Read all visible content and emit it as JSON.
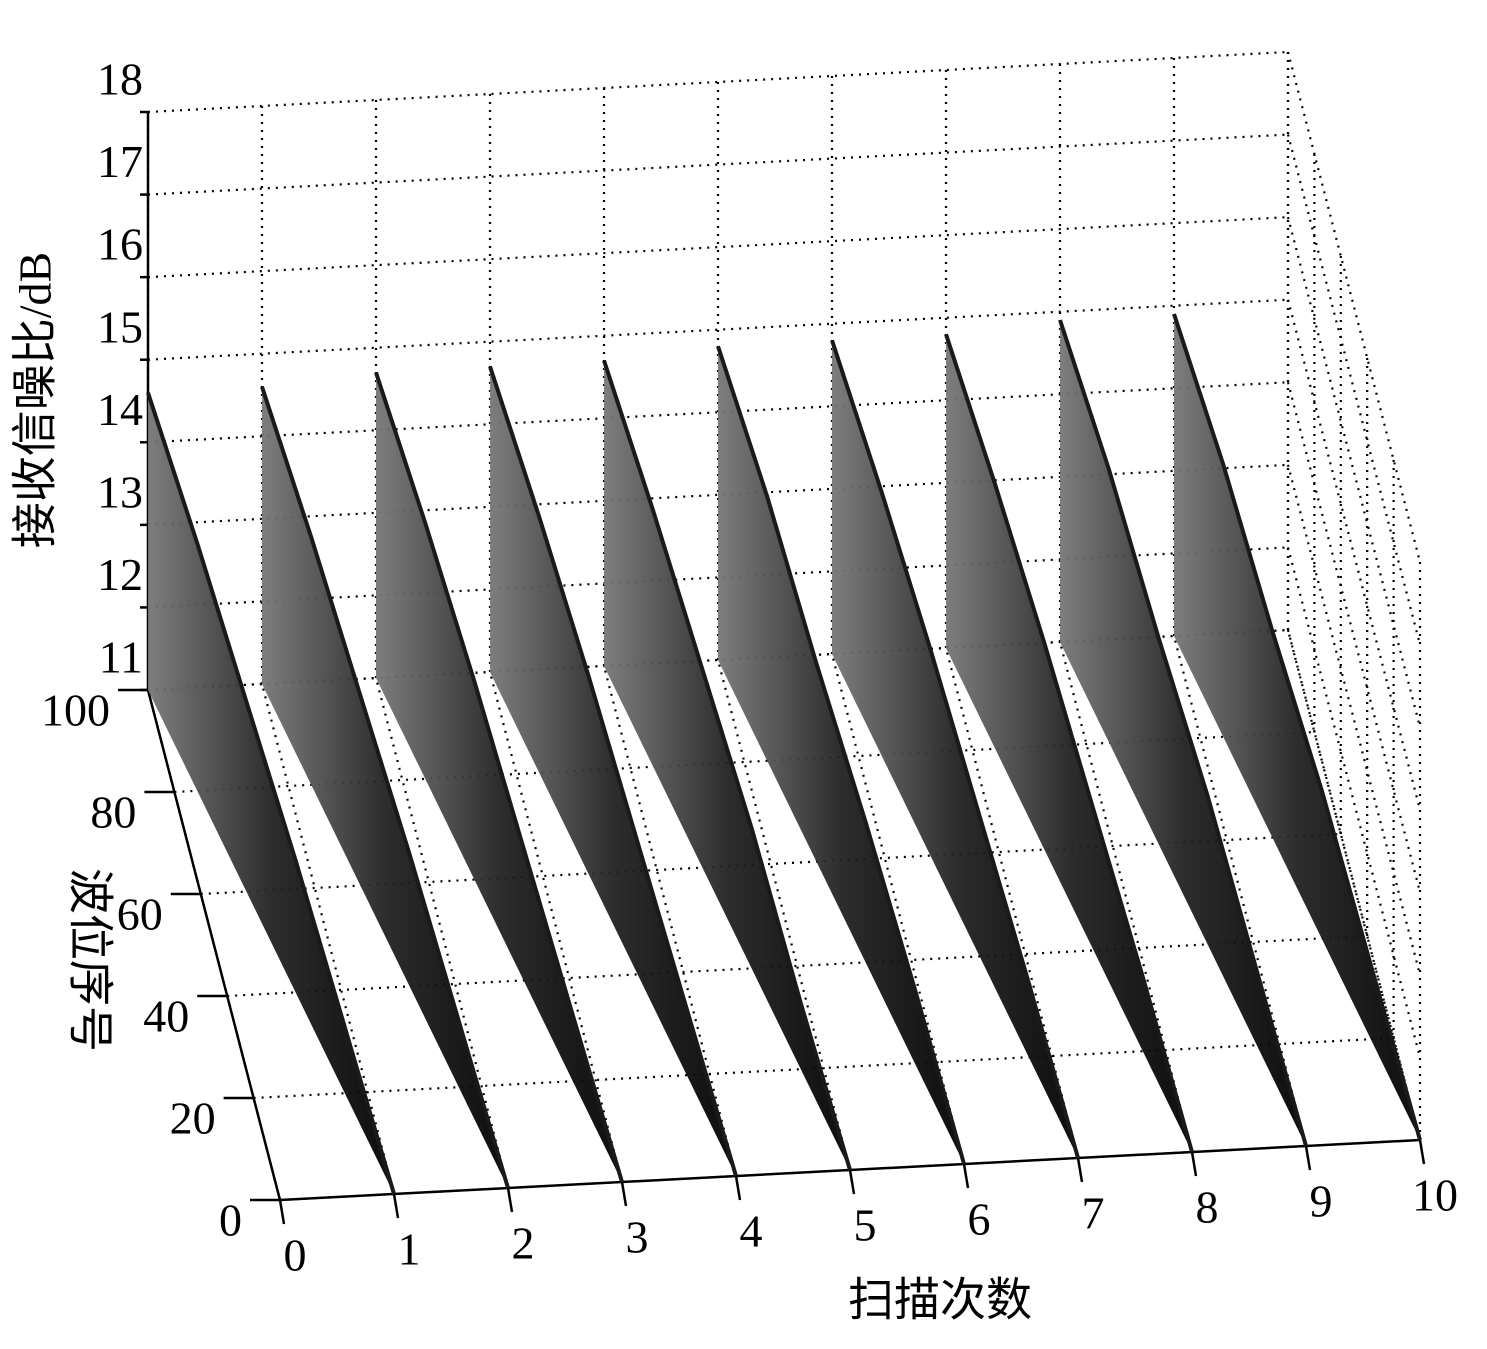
{
  "chart_data": {
    "type": "surface3d",
    "xlabel": "扫描次数",
    "ylabel": "波位序号",
    "zlabel": "接收信噪比/dB",
    "xlim": [
      0,
      10
    ],
    "ylim": [
      0,
      100
    ],
    "zlim": [
      11,
      18
    ],
    "xticks": [
      0,
      1,
      2,
      3,
      4,
      5,
      6,
      7,
      8,
      9,
      10
    ],
    "yticks": [
      0,
      20,
      40,
      60,
      80,
      100
    ],
    "zticks": [
      11,
      12,
      13,
      14,
      15,
      16,
      17,
      18
    ],
    "grid": true,
    "color": "#1a1a1a",
    "beam_positions": [
      100,
      80,
      60,
      40,
      20,
      0
    ],
    "series": [
      {
        "values": [
          14.6,
          14.0,
          13.3,
          12.6,
          11.8,
          11.0
        ]
      },
      {
        "values": [
          14.6,
          14.0,
          13.3,
          12.6,
          11.8,
          11.0
        ]
      },
      {
        "values": [
          14.7,
          14.1,
          13.4,
          12.6,
          11.8,
          11.0
        ]
      },
      {
        "values": [
          14.7,
          14.1,
          13.4,
          12.6,
          11.8,
          11.0
        ]
      },
      {
        "values": [
          14.7,
          14.1,
          13.4,
          12.7,
          11.8,
          11.0
        ]
      },
      {
        "values": [
          14.8,
          14.2,
          13.4,
          12.7,
          11.9,
          11.0
        ]
      },
      {
        "values": [
          14.8,
          14.2,
          13.5,
          12.7,
          11.9,
          11.0
        ]
      },
      {
        "values": [
          14.8,
          14.2,
          13.5,
          12.7,
          11.9,
          11.0
        ]
      },
      {
        "values": [
          14.9,
          14.3,
          13.5,
          12.8,
          11.9,
          11.0
        ]
      },
      {
        "values": [
          14.9,
          14.3,
          13.5,
          12.8,
          11.9,
          11.0
        ]
      }
    ]
  }
}
